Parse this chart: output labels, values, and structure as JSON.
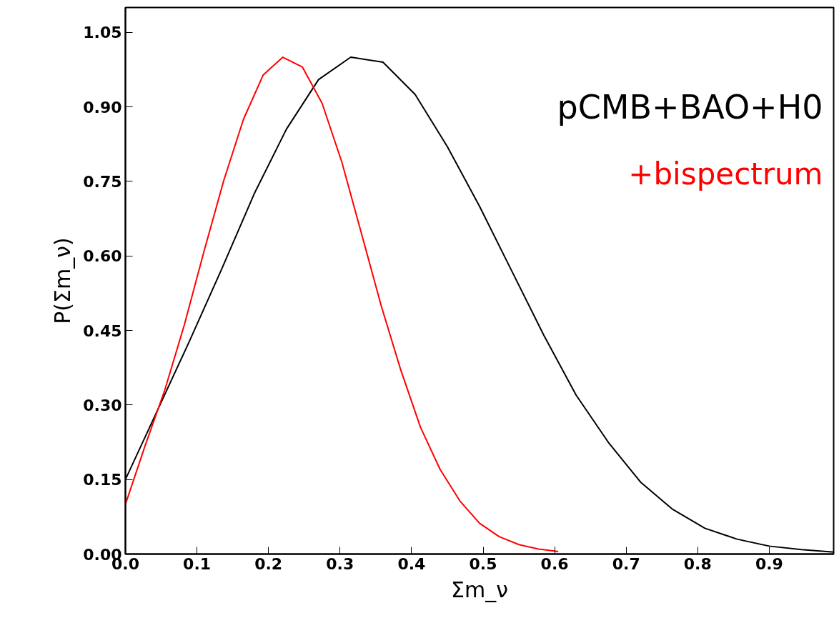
{
  "chart_data": {
    "type": "line",
    "xlabel": "Σm_ν",
    "ylabel": "P(Σm_ν)",
    "series": [
      {
        "name": "pCMB+BAO+H0",
        "color": "#000000",
        "x": [
          0,
          0.045,
          0.09,
          0.135,
          0.18,
          0.225,
          0.27,
          0.315,
          0.36,
          0.405,
          0.45,
          0.495,
          0.54,
          0.585,
          0.63,
          0.675,
          0.72,
          0.765,
          0.81,
          0.855,
          0.9,
          0.945,
          0.99
        ],
        "values": [
          0.15,
          0.29,
          0.43,
          0.575,
          0.725,
          0.855,
          0.955,
          1.0,
          0.99,
          0.925,
          0.82,
          0.7,
          0.57,
          0.44,
          0.32,
          0.225,
          0.145,
          0.09,
          0.052,
          0.03,
          0.016,
          0.009,
          0.004
        ]
      },
      {
        "name": "+bispectrum",
        "color": "#ff0000",
        "x": [
          0,
          0.0275,
          0.055,
          0.0825,
          0.11,
          0.1375,
          0.165,
          0.1925,
          0.22,
          0.2475,
          0.275,
          0.3025,
          0.33,
          0.3575,
          0.385,
          0.4125,
          0.44,
          0.4675,
          0.495,
          0.5225,
          0.55,
          0.5775,
          0.605
        ],
        "values": [
          0.1,
          0.218,
          0.33,
          0.462,
          0.61,
          0.752,
          0.875,
          0.964,
          1.0,
          0.98,
          0.907,
          0.789,
          0.645,
          0.5,
          0.37,
          0.255,
          0.17,
          0.107,
          0.062,
          0.035,
          0.019,
          0.01,
          0.005
        ]
      }
    ],
    "xlim": [
      0,
      0.99
    ],
    "ylim": [
      0,
      1.1
    ],
    "xticks": [
      {
        "value": 0,
        "label": "0.0"
      },
      0.1,
      0.2,
      0.3,
      0.4,
      0.5,
      0.6,
      0.7,
      0.8,
      0.9
    ],
    "yticks": [
      {
        "value": 0,
        "label": "0.00"
      },
      0.15,
      {
        "value": 0.3,
        "label": "0.30"
      },
      0.45,
      {
        "value": 0.6,
        "label": "0.60"
      },
      0.75,
      {
        "value": 0.9,
        "label": "0.90"
      },
      1.05
    ],
    "grid": false,
    "marker": "none",
    "line_style": "solid"
  }
}
